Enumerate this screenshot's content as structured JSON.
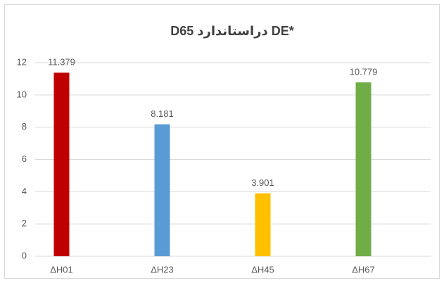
{
  "chart_data": {
    "type": "bar",
    "title": "D65 دراستاندارد DE*",
    "categories": [
      "ΔH01",
      "ΔH23",
      "ΔH45",
      "ΔH67"
    ],
    "values": [
      11.379,
      8.181,
      3.901,
      10.779
    ],
    "colors": [
      "#c00000",
      "#5b9bd5",
      "#ffc000",
      "#70ad47"
    ],
    "ylim": [
      0,
      12
    ],
    "yticks": [
      0,
      2,
      4,
      6,
      8,
      10,
      12
    ],
    "grid": true,
    "data_labels": true
  }
}
